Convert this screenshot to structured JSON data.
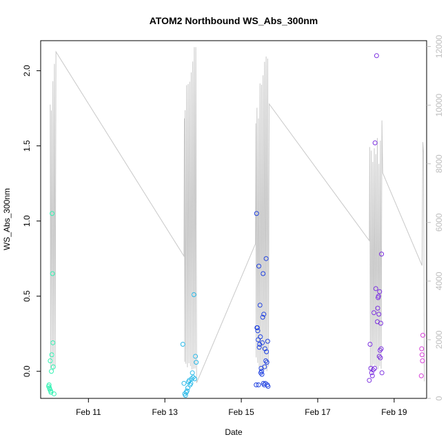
{
  "chart_data": {
    "type": "scatter",
    "title": "ATOM2 Northbound WS_Abs_300nm",
    "xlabel": "Date",
    "ylabel": "WS_Abs_300nm",
    "x_range_days": [
      9.75,
      19.85
    ],
    "ylim_left": [
      -0.18,
      2.2
    ],
    "ylim_right": [
      0,
      12200
    ],
    "x_ticks": [
      {
        "day": 11,
        "label": "Feb 11"
      },
      {
        "day": 13,
        "label": "Feb 13"
      },
      {
        "day": 15,
        "label": "Feb 15"
      },
      {
        "day": 17,
        "label": "Feb 17"
      },
      {
        "day": 19,
        "label": "Feb 19"
      }
    ],
    "y_ticks_left": [
      {
        "v": 0.0,
        "label": "0.0"
      },
      {
        "v": 0.5,
        "label": "0.5"
      },
      {
        "v": 1.0,
        "label": "1.0"
      },
      {
        "v": 1.5,
        "label": "1.5"
      },
      {
        "v": 2.0,
        "label": "2.0"
      }
    ],
    "y_ticks_right": [
      {
        "v": 0,
        "label": "0"
      },
      {
        "v": 2000,
        "label": "2000"
      },
      {
        "v": 4000,
        "label": "4000"
      },
      {
        "v": 6000,
        "label": "6000"
      },
      {
        "v": 8000,
        "label": "8000"
      },
      {
        "v": 10000,
        "label": "10000"
      },
      {
        "v": 12000,
        "label": "12000"
      }
    ],
    "grey_line_color": "#c8c8c8",
    "grey_line": [
      [
        10.0,
        10020
      ],
      [
        10.01,
        1010
      ],
      [
        10.03,
        9820
      ],
      [
        10.05,
        1100
      ],
      [
        10.07,
        10820
      ],
      [
        10.09,
        960
      ],
      [
        10.11,
        11410
      ],
      [
        10.13,
        1020
      ],
      [
        10.15,
        11820
      ],
      [
        13.5,
        4850
      ],
      [
        13.51,
        9550
      ],
      [
        13.52,
        1250
      ],
      [
        13.53,
        9830
      ],
      [
        13.55,
        1180
      ],
      [
        13.57,
        10680
      ],
      [
        13.59,
        1060
      ],
      [
        13.61,
        10720
      ],
      [
        13.63,
        1200
      ],
      [
        13.65,
        10800
      ],
      [
        13.67,
        1100
      ],
      [
        13.69,
        11120
      ],
      [
        13.71,
        990
      ],
      [
        13.73,
        11490
      ],
      [
        13.75,
        1010
      ],
      [
        13.77,
        11980
      ],
      [
        13.79,
        1020
      ],
      [
        13.81,
        11980
      ],
      [
        13.83,
        530
      ],
      [
        15.37,
        5270
      ],
      [
        15.38,
        9380
      ],
      [
        15.39,
        1400
      ],
      [
        15.41,
        9910
      ],
      [
        15.43,
        1210
      ],
      [
        15.45,
        9550
      ],
      [
        15.47,
        970
      ],
      [
        15.49,
        10740
      ],
      [
        15.51,
        960
      ],
      [
        15.53,
        10700
      ],
      [
        15.55,
        1000
      ],
      [
        15.57,
        11020
      ],
      [
        15.59,
        930
      ],
      [
        15.61,
        11480
      ],
      [
        15.63,
        1000
      ],
      [
        15.65,
        11660
      ],
      [
        15.67,
        930
      ],
      [
        15.69,
        11590
      ],
      [
        15.71,
        1090
      ],
      [
        15.73,
        10040
      ],
      [
        18.35,
        5380
      ],
      [
        18.36,
        8570
      ],
      [
        18.38,
        1040
      ],
      [
        18.4,
        8450
      ],
      [
        18.42,
        860
      ],
      [
        18.44,
        8070
      ],
      [
        18.46,
        1160
      ],
      [
        18.48,
        8530
      ],
      [
        18.5,
        1110
      ],
      [
        18.52,
        8330
      ],
      [
        18.54,
        1080
      ],
      [
        18.56,
        8880
      ],
      [
        18.58,
        1000
      ],
      [
        18.6,
        8000
      ],
      [
        18.62,
        1100
      ],
      [
        18.64,
        8790
      ],
      [
        18.66,
        1010
      ],
      [
        18.68,
        9480
      ],
      [
        18.7,
        7690
      ],
      [
        19.73,
        4530
      ],
      [
        19.75,
        8740
      ],
      [
        19.77,
        8380
      ],
      [
        19.79,
        580
      ]
    ],
    "series": [
      {
        "color": "#33f2b3",
        "x": [
          9.96,
          9.97,
          9.98,
          9.99,
          10.0,
          10.01,
          10.02,
          10.03,
          10.04,
          10.05,
          10.06,
          10.07,
          10.08,
          10.1
        ],
        "y": [
          -0.1,
          -0.09,
          -0.11,
          -0.12,
          0.07,
          -0.13,
          -0.14,
          0.0,
          0.11,
          1.05,
          0.65,
          0.19,
          0.03,
          -0.15
        ]
      },
      {
        "color": "#29b9e8",
        "x": [
          13.47,
          13.5,
          13.52,
          13.54,
          13.56,
          13.58,
          13.6,
          13.62,
          13.64,
          13.66,
          13.68,
          13.7,
          13.72,
          13.74,
          13.76,
          13.78,
          13.8,
          13.82
        ],
        "y": [
          0.18,
          -0.08,
          -0.15,
          -0.16,
          -0.14,
          -0.13,
          -0.11,
          -0.07,
          -0.06,
          -0.09,
          -0.08,
          -0.05,
          -0.01,
          -0.04,
          0.51,
          -0.05,
          0.1,
          0.06
        ]
      },
      {
        "color": "#2042e0",
        "x": [
          15.39,
          15.4,
          15.41,
          15.42,
          15.43,
          15.44,
          15.45,
          15.46,
          15.47,
          15.48,
          15.49,
          15.5,
          15.51,
          15.52,
          15.53,
          15.54,
          15.55,
          15.56,
          15.57,
          15.58,
          15.59,
          15.6,
          15.61,
          15.62,
          15.63,
          15.64,
          15.65,
          15.66,
          15.67,
          15.68,
          15.69,
          15.7
        ],
        "y": [
          -0.09,
          1.05,
          0.29,
          0.29,
          0.27,
          0.21,
          -0.09,
          0.7,
          0.16,
          0.18,
          0.44,
          0.23,
          -0.01,
          0.02,
          0.0,
          -0.02,
          0.19,
          0.36,
          0.65,
          -0.08,
          0.38,
          -0.09,
          0.03,
          0.15,
          -0.08,
          0.07,
          0.75,
          0.13,
          0.06,
          -0.09,
          0.2,
          -0.1
        ]
      },
      {
        "color": "#7b2fe0",
        "x": [
          18.35,
          18.37,
          18.39,
          18.41,
          18.43,
          18.45,
          18.47,
          18.49,
          18.5,
          18.52,
          18.54,
          18.56,
          18.57,
          18.58,
          18.59,
          18.6,
          18.61,
          18.62,
          18.63,
          18.64,
          18.65,
          18.66,
          18.67,
          18.68
        ],
        "y": [
          -0.06,
          0.18,
          0.02,
          -0.01,
          -0.03,
          0.01,
          0.39,
          0.02,
          1.52,
          0.55,
          2.1,
          0.33,
          0.42,
          0.49,
          0.5,
          0.38,
          0.1,
          0.53,
          0.14,
          0.09,
          0.32,
          0.15,
          0.78,
          -0.01
        ]
      },
      {
        "color": "#d63fd8",
        "x": [
          19.71,
          19.72,
          19.73,
          19.74,
          19.75
        ],
        "y": [
          -0.03,
          0.15,
          0.11,
          0.07,
          0.24
        ]
      }
    ]
  }
}
